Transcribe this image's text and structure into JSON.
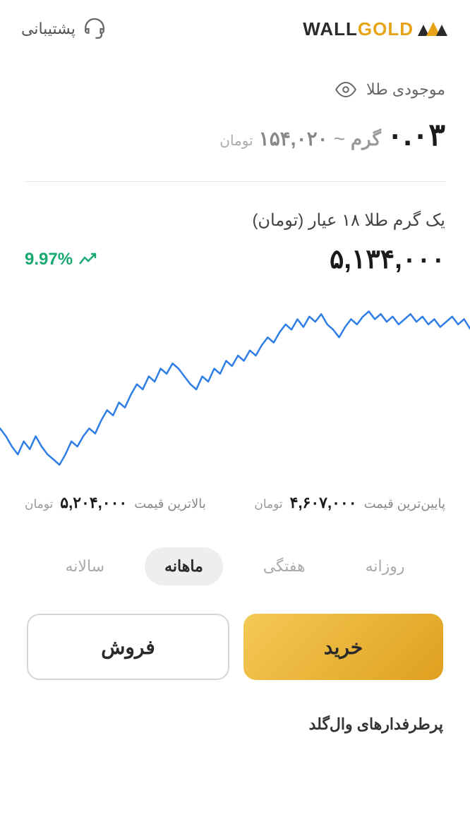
{
  "header": {
    "logo_wall": "WALL",
    "logo_gold": "GOLD",
    "support_label": "پشتیبانی"
  },
  "balance": {
    "title": "موجودی طلا",
    "amount": "۰.۰۳",
    "unit": "گرم",
    "toman_value": "۱۵۴,۰۲۰",
    "toman_unit": "تومان"
  },
  "price": {
    "label": "یک گرم طلا ۱۸ عیار (تومان)",
    "current": "۵,۱۳۴,۰۰۰",
    "change_percent": "9.97%",
    "change_direction": "up",
    "change_color": "#17a971"
  },
  "chart": {
    "type": "line",
    "line_color": "#2f7ee6",
    "line_width": 2.5,
    "background_color": "#ffffff",
    "ylim": [
      4607000,
      5204000
    ],
    "points": [
      4750000,
      4720000,
      4680000,
      4650000,
      4700000,
      4670000,
      4720000,
      4680000,
      4650000,
      4630000,
      4610000,
      4650000,
      4700000,
      4680000,
      4720000,
      4750000,
      4730000,
      4780000,
      4820000,
      4800000,
      4850000,
      4830000,
      4880000,
      4920000,
      4900000,
      4950000,
      4930000,
      4980000,
      4960000,
      5000000,
      4980000,
      4950000,
      4920000,
      4900000,
      4950000,
      4930000,
      4980000,
      4960000,
      5010000,
      4990000,
      5030000,
      5010000,
      5050000,
      5030000,
      5070000,
      5100000,
      5080000,
      5120000,
      5150000,
      5130000,
      5170000,
      5140000,
      5180000,
      5160000,
      5190000,
      5150000,
      5130000,
      5100000,
      5140000,
      5170000,
      5150000,
      5180000,
      5200000,
      5170000,
      5190000,
      5160000,
      5180000,
      5150000,
      5170000,
      5190000,
      5160000,
      5180000,
      5150000,
      5170000,
      5140000,
      5160000,
      5180000,
      5150000,
      5170000,
      5134000
    ]
  },
  "minmax": {
    "low_label": "پایین‌ترین قیمت",
    "low_value": "۴,۶۰۷,۰۰۰",
    "high_label": "بالاترین قیمت",
    "high_value": "۵,۲۰۴,۰۰۰",
    "unit": "تومان"
  },
  "tabs": {
    "items": [
      {
        "label": "روزانه",
        "active": false
      },
      {
        "label": "هفتگی",
        "active": false
      },
      {
        "label": "ماهانه",
        "active": true
      },
      {
        "label": "سالانه",
        "active": false
      }
    ]
  },
  "actions": {
    "buy_label": "خرید",
    "sell_label": "فروش"
  },
  "footer": {
    "fans_label": "پرطرفدارهای وال‌گلد"
  },
  "colors": {
    "accent_gold": "#e8a419",
    "text_primary": "#1a1a1a",
    "text_secondary": "#888888",
    "positive": "#17a971",
    "chart_line": "#2f7ee6",
    "tab_active_bg": "#eceef0",
    "btn_buy_start": "#f4c956",
    "btn_buy_end": "#dfa01e"
  }
}
